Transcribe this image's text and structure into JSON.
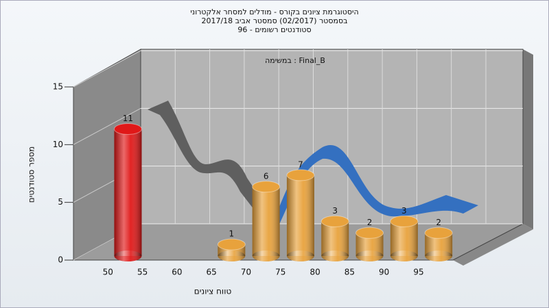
{
  "chart_data": {
    "type": "bar3d",
    "title": [
      "היסטוגרמת ציונים בקורס - מודלים למסחר אלקטרוני",
      "בסמסטר  (02/2017)  סמסטר אביב 2017/18",
      "סטודנטים רשומים - 96"
    ],
    "annotation": "במשימה : Final_B",
    "x_label": "טווח ציונים",
    "y_label": "מספר סטודנטים",
    "categories": [
      "50",
      "55",
      "60",
      "65",
      "70",
      "75",
      "80",
      "85",
      "90",
      "95"
    ],
    "values": [
      11,
      null,
      null,
      1,
      6,
      7,
      3,
      2,
      3,
      2
    ],
    "colors": [
      "#e01818",
      null,
      null,
      "#e8a23c",
      "#e8a23c",
      "#e8a23c",
      "#e8a23c",
      "#e8a23c",
      "#e8a23c",
      "#e8a23c"
    ],
    "ylim": [
      0,
      15
    ],
    "yticks": [
      0,
      5,
      10,
      15
    ],
    "grid": true
  }
}
